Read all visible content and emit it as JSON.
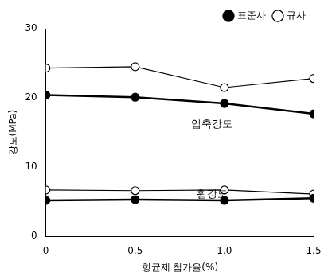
{
  "chart_data": {
    "type": "line",
    "x_label": "항균제 첨가율(%)",
    "y_label": "강도(MPa)",
    "x": [
      0,
      0.5,
      1.0,
      1.5
    ],
    "xlim": [
      0,
      1.5
    ],
    "xticks": [
      0,
      0.5,
      {
        "value": 1,
        "label": "1.0"
      },
      1.5
    ],
    "ylim": [
      0,
      30
    ],
    "yticks": [
      0,
      10,
      20,
      30
    ],
    "grid": false,
    "legend": "upper right",
    "annotations": [
      "압축강도",
      "휨강도"
    ],
    "series": [
      {
        "name": "표준사",
        "color": "#000000",
        "marker": "circle",
        "line_style": "solid",
        "values": [
          20.4,
          20.1,
          19.2,
          17.7
        ]
      },
      {
        "name": "규사",
        "color": "#000000",
        "marker": "open_circle",
        "line_style": "solid",
        "values": [
          24.3,
          24.5,
          21.5,
          22.8
        ]
      },
      {
        "name": "표준사",
        "color": "#000000",
        "marker": "circle",
        "line_style": "solid",
        "values": [
          5.2,
          5.3,
          5.2,
          5.5
        ]
      },
      {
        "name": "규사",
        "color": "#000000",
        "marker": "open_circle",
        "line_style": "solid",
        "values": [
          6.7,
          6.6,
          6.7,
          6.1
        ]
      }
    ]
  }
}
